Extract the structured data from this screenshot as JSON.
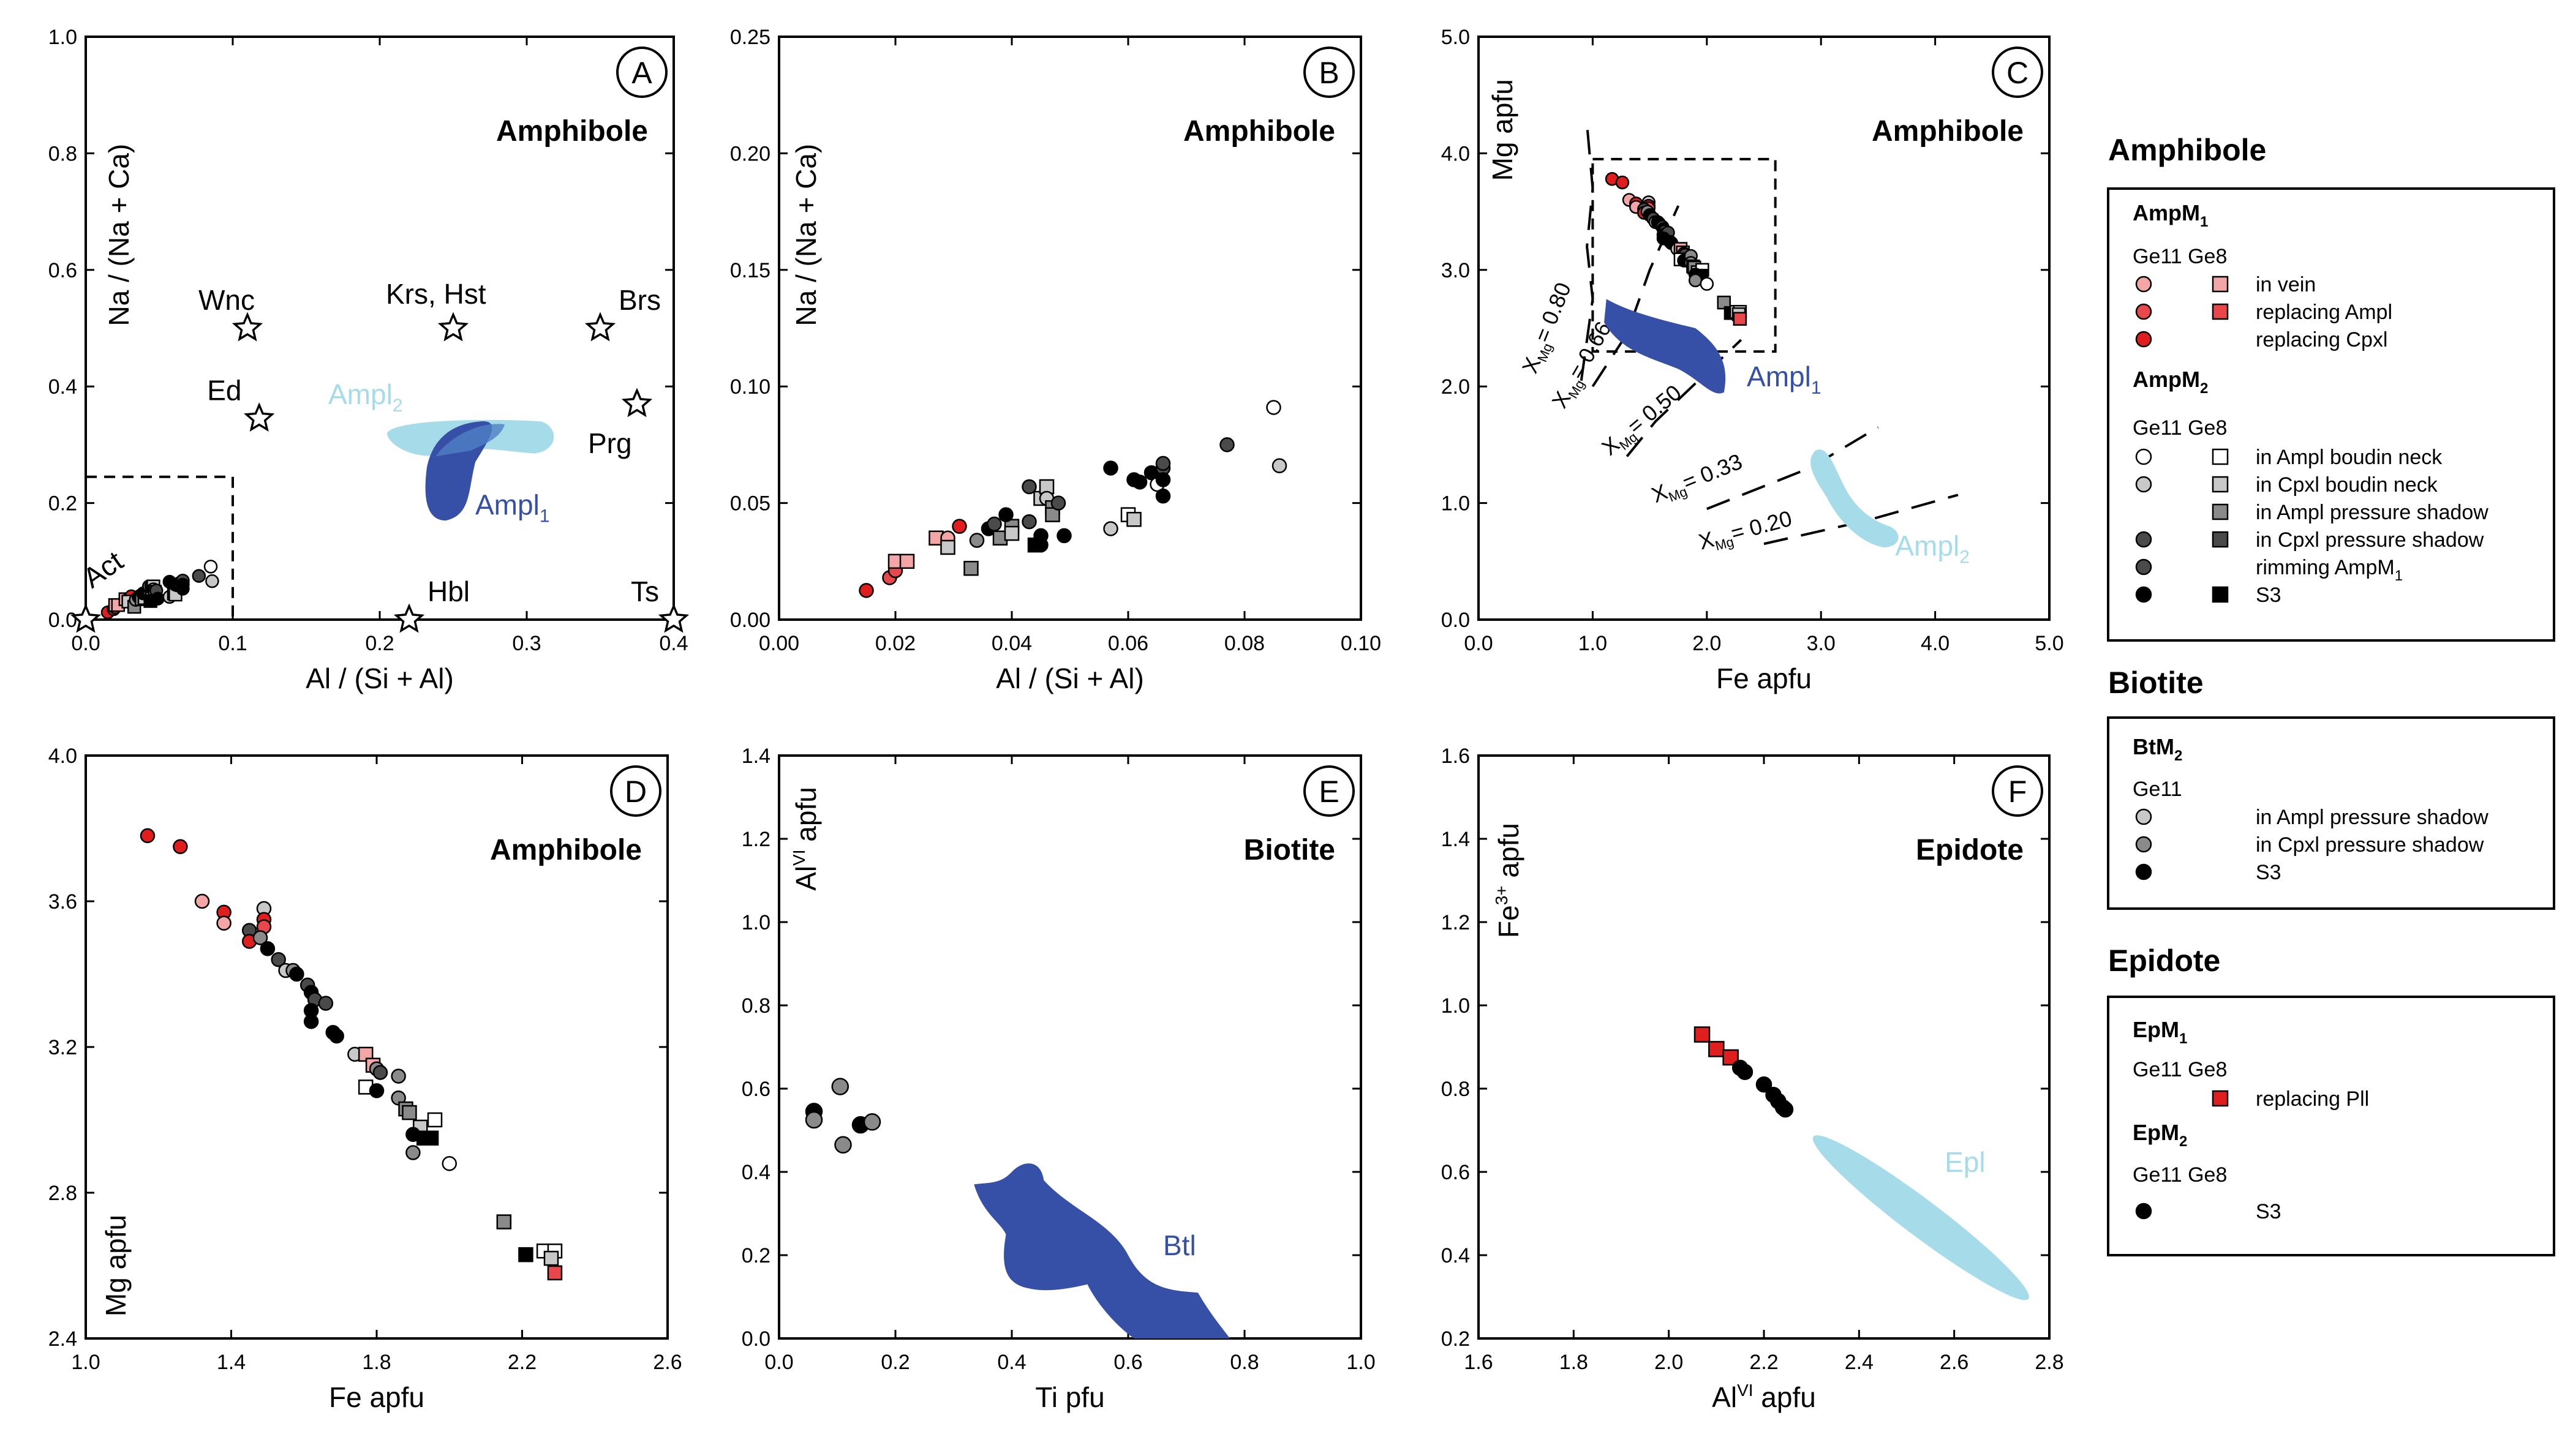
{
  "colors": {
    "light_red": "#f4a6a6",
    "red": "#e8484c",
    "dark_red": "#e01e1e",
    "white": "#ffffff",
    "light_grey": "#c8c8c8",
    "grey": "#8a8a8a",
    "dark_grey": "#4a4a4a",
    "black": "#000000",
    "dark_blue": "#3550a6",
    "light_blue": "#a6dcea"
  },
  "chart_data": [
    {
      "id": "A",
      "type": "scatter",
      "panel_label": "A",
      "title": "Amphibole",
      "xlabel": "Al / (Si + Al)",
      "ylabel": "Na / (Na + Ca)",
      "xlim": [
        0,
        0.4
      ],
      "ylim": [
        0,
        1.0
      ],
      "xticks": [
        "0.0",
        "0.1",
        "0.2",
        "0.3",
        "0.4"
      ],
      "yticks": [
        "0.0",
        "0.2",
        "0.4",
        "0.6",
        "0.8",
        "1.0"
      ],
      "end_members": [
        {
          "label": "Wnc",
          "x": 0.11,
          "y": 0.5
        },
        {
          "label": "Krs, Hst",
          "x": 0.25,
          "y": 0.5
        },
        {
          "label": "Brs",
          "x": 0.35,
          "y": 0.5
        },
        {
          "label": "Ed",
          "x": 0.118,
          "y": 0.345
        },
        {
          "label": "Prg",
          "x": 0.375,
          "y": 0.37
        },
        {
          "label": "Act",
          "x": 0.0,
          "y": 0.0
        },
        {
          "label": "Hbl",
          "x": 0.22,
          "y": 0.0
        },
        {
          "label": "Ts",
          "x": 0.4,
          "y": 0.0
        }
      ],
      "field_labels": [
        {
          "text": "Ampl",
          "sub": "2"
        },
        {
          "text": "Ampl",
          "sub": "1"
        }
      ],
      "zoom_box": {
        "x": [
          0,
          0.1
        ],
        "y": [
          0,
          0.245
        ]
      }
    },
    {
      "id": "B",
      "type": "scatter",
      "panel_label": "B",
      "title": "Amphibole",
      "xlabel": "Al / (Si + Al)",
      "ylabel": "Na / (Na + Ca)",
      "xlim": [
        0,
        0.1
      ],
      "ylim": [
        0,
        0.25
      ],
      "xticks": [
        "0.00",
        "0.02",
        "0.04",
        "0.06",
        "0.08",
        "0.10"
      ],
      "yticks": [
        "0.00",
        "0.05",
        "0.10",
        "0.15",
        "0.20",
        "0.25"
      ],
      "points": [
        {
          "x": 0.015,
          "y": 0.0125,
          "c": "dark_red",
          "s": "o"
        },
        {
          "x": 0.019,
          "y": 0.018,
          "c": "red",
          "s": "o"
        },
        {
          "x": 0.02,
          "y": 0.021,
          "c": "red",
          "s": "o"
        },
        {
          "x": 0.02,
          "y": 0.025,
          "c": "light_red",
          "s": "s"
        },
        {
          "x": 0.022,
          "y": 0.025,
          "c": "light_red",
          "s": "s"
        },
        {
          "x": 0.027,
          "y": 0.035,
          "c": "light_red",
          "s": "s"
        },
        {
          "x": 0.029,
          "y": 0.035,
          "c": "light_red",
          "s": "o"
        },
        {
          "x": 0.031,
          "y": 0.04,
          "c": "dark_red",
          "s": "o"
        },
        {
          "x": 0.029,
          "y": 0.031,
          "c": "light_grey",
          "s": "s"
        },
        {
          "x": 0.033,
          "y": 0.022,
          "c": "grey",
          "s": "s"
        },
        {
          "x": 0.034,
          "y": 0.034,
          "c": "grey",
          "s": "o"
        },
        {
          "x": 0.036,
          "y": 0.039,
          "c": "black",
          "s": "o"
        },
        {
          "x": 0.037,
          "y": 0.041,
          "c": "dark_grey",
          "s": "o"
        },
        {
          "x": 0.038,
          "y": 0.035,
          "c": "grey",
          "s": "s"
        },
        {
          "x": 0.04,
          "y": 0.04,
          "c": "grey",
          "s": "s"
        },
        {
          "x": 0.04,
          "y": 0.037,
          "c": "light_grey",
          "s": "s"
        },
        {
          "x": 0.039,
          "y": 0.045,
          "c": "black",
          "s": "o"
        },
        {
          "x": 0.043,
          "y": 0.042,
          "c": "dark_grey",
          "s": "o"
        },
        {
          "x": 0.043,
          "y": 0.057,
          "c": "dark_grey",
          "s": "o"
        },
        {
          "x": 0.045,
          "y": 0.036,
          "c": "black",
          "s": "o"
        },
        {
          "x": 0.045,
          "y": 0.032,
          "c": "black",
          "s": "o"
        },
        {
          "x": 0.045,
          "y": 0.052,
          "c": "light_grey",
          "s": "s"
        },
        {
          "x": 0.046,
          "y": 0.057,
          "c": "light_grey",
          "s": "s"
        },
        {
          "x": 0.046,
          "y": 0.052,
          "c": "light_grey",
          "s": "o"
        },
        {
          "x": 0.047,
          "y": 0.048,
          "c": "grey",
          "s": "s"
        },
        {
          "x": 0.047,
          "y": 0.045,
          "c": "grey",
          "s": "s"
        },
        {
          "x": 0.048,
          "y": 0.05,
          "c": "dark_grey",
          "s": "o"
        },
        {
          "x": 0.049,
          "y": 0.036,
          "c": "black",
          "s": "o"
        },
        {
          "x": 0.044,
          "y": 0.032,
          "c": "black",
          "s": "s"
        },
        {
          "x": 0.057,
          "y": 0.039,
          "c": "light_grey",
          "s": "o"
        },
        {
          "x": 0.057,
          "y": 0.065,
          "c": "black",
          "s": "o"
        },
        {
          "x": 0.06,
          "y": 0.045,
          "c": "white",
          "s": "s"
        },
        {
          "x": 0.061,
          "y": 0.043,
          "c": "light_grey",
          "s": "s"
        },
        {
          "x": 0.061,
          "y": 0.06,
          "c": "black",
          "s": "o"
        },
        {
          "x": 0.062,
          "y": 0.059,
          "c": "black",
          "s": "o"
        },
        {
          "x": 0.064,
          "y": 0.063,
          "c": "black",
          "s": "o"
        },
        {
          "x": 0.065,
          "y": 0.058,
          "c": "white",
          "s": "o"
        },
        {
          "x": 0.066,
          "y": 0.065,
          "c": "dark_grey",
          "s": "o"
        },
        {
          "x": 0.066,
          "y": 0.067,
          "c": "dark_grey",
          "s": "o"
        },
        {
          "x": 0.066,
          "y": 0.06,
          "c": "black",
          "s": "o"
        },
        {
          "x": 0.066,
          "y": 0.053,
          "c": "black",
          "s": "o"
        },
        {
          "x": 0.077,
          "y": 0.075,
          "c": "dark_grey",
          "s": "o"
        },
        {
          "x": 0.085,
          "y": 0.091,
          "c": "white",
          "s": "o"
        },
        {
          "x": 0.086,
          "y": 0.066,
          "c": "light_grey",
          "s": "o"
        }
      ]
    },
    {
      "id": "C",
      "type": "scatter",
      "panel_label": "C",
      "title": "Amphibole",
      "xlabel": "Fe apfu",
      "ylabel": "Mg apfu",
      "xlim": [
        0,
        5
      ],
      "ylim": [
        0,
        5
      ],
      "xticks": [
        "0.0",
        "1.0",
        "2.0",
        "3.0",
        "4.0",
        "5.0"
      ],
      "yticks": [
        "0.0",
        "1.0",
        "2.0",
        "3.0",
        "4.0",
        "5.0"
      ],
      "isolines": [
        {
          "label": "= 0.80",
          "xmg": "X",
          "sub": "Mg"
        },
        {
          "label": "= 0.66",
          "xmg": "X",
          "sub": "Mg"
        },
        {
          "label": "= 0.50",
          "xmg": "X",
          "sub": "Mg"
        },
        {
          "label": "= 0.33",
          "xmg": "X",
          "sub": "Mg"
        },
        {
          "label": "= 0.20",
          "xmg": "X",
          "sub": "Mg"
        }
      ],
      "field_labels": [
        {
          "text": "Ampl",
          "sub": "1"
        },
        {
          "text": "Ampl",
          "sub": "2"
        }
      ],
      "zoom_box": {
        "x": [
          1.0,
          2.6
        ],
        "y": [
          2.3,
          3.95
        ]
      }
    },
    {
      "id": "D",
      "type": "scatter",
      "panel_label": "D",
      "title": "Amphibole",
      "xlabel": "Fe apfu",
      "ylabel": "Mg apfu",
      "xlim": [
        1.0,
        2.6
      ],
      "ylim": [
        2.4,
        4.0
      ],
      "xticks": [
        "1.0",
        "1.4",
        "1.8",
        "2.2",
        "2.6"
      ],
      "yticks": [
        "2.4",
        "2.8",
        "3.2",
        "3.6",
        "4.0"
      ],
      "points": [
        {
          "x": 1.17,
          "y": 3.78,
          "c": "dark_red",
          "s": "o"
        },
        {
          "x": 1.26,
          "y": 3.75,
          "c": "dark_red",
          "s": "o"
        },
        {
          "x": 1.32,
          "y": 3.6,
          "c": "light_red",
          "s": "o"
        },
        {
          "x": 1.38,
          "y": 3.57,
          "c": "dark_red",
          "s": "o"
        },
        {
          "x": 1.38,
          "y": 3.54,
          "c": "light_red",
          "s": "o"
        },
        {
          "x": 1.49,
          "y": 3.58,
          "c": "light_grey",
          "s": "o"
        },
        {
          "x": 1.49,
          "y": 3.55,
          "c": "dark_red",
          "s": "o"
        },
        {
          "x": 1.49,
          "y": 3.53,
          "c": "red",
          "s": "o"
        },
        {
          "x": 1.45,
          "y": 3.52,
          "c": "dark_grey",
          "s": "o"
        },
        {
          "x": 1.45,
          "y": 3.49,
          "c": "dark_red",
          "s": "o"
        },
        {
          "x": 1.48,
          "y": 3.5,
          "c": "grey",
          "s": "o"
        },
        {
          "x": 1.5,
          "y": 3.47,
          "c": "black",
          "s": "o"
        },
        {
          "x": 1.53,
          "y": 3.44,
          "c": "dark_grey",
          "s": "o"
        },
        {
          "x": 1.55,
          "y": 3.41,
          "c": "light_grey",
          "s": "o"
        },
        {
          "x": 1.57,
          "y": 3.41,
          "c": "grey",
          "s": "o"
        },
        {
          "x": 1.58,
          "y": 3.4,
          "c": "black",
          "s": "o"
        },
        {
          "x": 1.61,
          "y": 3.37,
          "c": "dark_grey",
          "s": "o"
        },
        {
          "x": 1.62,
          "y": 3.35,
          "c": "black",
          "s": "o"
        },
        {
          "x": 1.63,
          "y": 3.33,
          "c": "dark_grey",
          "s": "o"
        },
        {
          "x": 1.62,
          "y": 3.3,
          "c": "black",
          "s": "o"
        },
        {
          "x": 1.66,
          "y": 3.32,
          "c": "dark_grey",
          "s": "o"
        },
        {
          "x": 1.62,
          "y": 3.27,
          "c": "black",
          "s": "o"
        },
        {
          "x": 1.68,
          "y": 3.24,
          "c": "black",
          "s": "o"
        },
        {
          "x": 1.69,
          "y": 3.23,
          "c": "black",
          "s": "o"
        },
        {
          "x": 1.74,
          "y": 3.18,
          "c": "light_grey",
          "s": "o"
        },
        {
          "x": 1.77,
          "y": 3.18,
          "c": "light_red",
          "s": "s"
        },
        {
          "x": 1.79,
          "y": 3.15,
          "c": "light_red",
          "s": "s"
        },
        {
          "x": 1.8,
          "y": 3.14,
          "c": "grey",
          "s": "o"
        },
        {
          "x": 1.81,
          "y": 3.13,
          "c": "dark_grey",
          "s": "o"
        },
        {
          "x": 1.77,
          "y": 3.09,
          "c": "white",
          "s": "s"
        },
        {
          "x": 1.8,
          "y": 3.08,
          "c": "black",
          "s": "o"
        },
        {
          "x": 1.86,
          "y": 3.12,
          "c": "grey",
          "s": "o"
        },
        {
          "x": 1.86,
          "y": 3.06,
          "c": "grey",
          "s": "o"
        },
        {
          "x": 1.88,
          "y": 3.03,
          "c": "grey",
          "s": "s"
        },
        {
          "x": 1.89,
          "y": 3.02,
          "c": "grey",
          "s": "s"
        },
        {
          "x": 1.92,
          "y": 2.98,
          "c": "light_grey",
          "s": "s"
        },
        {
          "x": 1.96,
          "y": 3.0,
          "c": "white",
          "s": "s"
        },
        {
          "x": 1.9,
          "y": 2.96,
          "c": "black",
          "s": "o"
        },
        {
          "x": 1.93,
          "y": 2.95,
          "c": "black",
          "s": "s"
        },
        {
          "x": 1.95,
          "y": 2.95,
          "c": "black",
          "s": "s"
        },
        {
          "x": 1.9,
          "y": 2.91,
          "c": "grey",
          "s": "o"
        },
        {
          "x": 2.0,
          "y": 2.88,
          "c": "white",
          "s": "o"
        },
        {
          "x": 2.15,
          "y": 2.72,
          "c": "grey",
          "s": "s"
        },
        {
          "x": 2.21,
          "y": 2.63,
          "c": "black",
          "s": "s"
        },
        {
          "x": 2.26,
          "y": 2.64,
          "c": "white",
          "s": "s"
        },
        {
          "x": 2.29,
          "y": 2.64,
          "c": "white",
          "s": "s"
        },
        {
          "x": 2.28,
          "y": 2.62,
          "c": "light_grey",
          "s": "s"
        },
        {
          "x": 2.29,
          "y": 2.58,
          "c": "red",
          "s": "s"
        }
      ]
    },
    {
      "id": "E",
      "type": "scatter",
      "panel_label": "E",
      "title": "Biotite",
      "xlabel": "Ti pfu",
      "ylabel": "Al",
      "ylabel_sup": "VI",
      "ylabel_rest": " apfu",
      "xlim": [
        0,
        1.0
      ],
      "ylim": [
        0,
        1.4
      ],
      "xticks": [
        "0.0",
        "0.2",
        "0.4",
        "0.6",
        "0.8",
        "1.0"
      ],
      "yticks": [
        "0.0",
        "0.2",
        "0.4",
        "0.6",
        "0.8",
        "1.0",
        "1.2",
        "1.4"
      ],
      "field_labels": [
        {
          "text": "Btl",
          "sub": ""
        }
      ],
      "points": [
        {
          "x": 0.06,
          "y": 0.545,
          "c": "black",
          "s": "o"
        },
        {
          "x": 0.06,
          "y": 0.525,
          "c": "grey",
          "s": "o"
        },
        {
          "x": 0.105,
          "y": 0.605,
          "c": "grey",
          "s": "o"
        },
        {
          "x": 0.11,
          "y": 0.465,
          "c": "grey",
          "s": "o"
        },
        {
          "x": 0.14,
          "y": 0.513,
          "c": "black",
          "s": "o"
        },
        {
          "x": 0.16,
          "y": 0.52,
          "c": "grey",
          "s": "o"
        }
      ]
    },
    {
      "id": "F",
      "type": "scatter",
      "panel_label": "F",
      "title": "Epidote",
      "xlabel": "Al",
      "xlabel_sup": "VI",
      "xlabel_rest": " apfu",
      "ylabel": "Fe",
      "ylabel_sup": "3+",
      "ylabel_rest": " apfu",
      "xlim": [
        1.6,
        2.8
      ],
      "ylim": [
        0.2,
        1.6
      ],
      "xticks": [
        "1.6",
        "1.8",
        "2.0",
        "2.2",
        "2.4",
        "2.6",
        "2.8"
      ],
      "yticks": [
        "0.2",
        "0.4",
        "0.6",
        "0.8",
        "1.0",
        "1.2",
        "1.4",
        "1.6"
      ],
      "field_labels": [
        {
          "text": "Epl",
          "sub": ""
        }
      ],
      "points": [
        {
          "x": 2.07,
          "y": 0.93,
          "c": "dark_red",
          "s": "s"
        },
        {
          "x": 2.1,
          "y": 0.895,
          "c": "dark_red",
          "s": "s"
        },
        {
          "x": 2.13,
          "y": 0.875,
          "c": "dark_red",
          "s": "s"
        },
        {
          "x": 2.15,
          "y": 0.85,
          "c": "black",
          "s": "o"
        },
        {
          "x": 2.16,
          "y": 0.84,
          "c": "black",
          "s": "o"
        },
        {
          "x": 2.2,
          "y": 0.81,
          "c": "black",
          "s": "o"
        },
        {
          "x": 2.22,
          "y": 0.785,
          "c": "black",
          "s": "o"
        },
        {
          "x": 2.23,
          "y": 0.77,
          "c": "black",
          "s": "o"
        },
        {
          "x": 2.24,
          "y": 0.755,
          "c": "black",
          "s": "o"
        },
        {
          "x": 2.245,
          "y": 0.75,
          "c": "black",
          "s": "o"
        }
      ]
    }
  ],
  "legend": {
    "amphibole": {
      "heading": "Amphibole",
      "group1": {
        "title": "AmpM",
        "title_sub": "1",
        "cols": "Ge11  Ge8",
        "rows": [
          {
            "label": "in vein",
            "circle": "light_red",
            "square": "light_red"
          },
          {
            "label": "replacing Ampl",
            "circle": "red",
            "square": "red"
          },
          {
            "label": "replacing Cpxl",
            "circle": "dark_red",
            "square": ""
          }
        ]
      },
      "group2": {
        "title": "AmpM",
        "title_sub": "2",
        "cols": "Ge11  Ge8",
        "rows": [
          {
            "label": "in Ampl boudin neck",
            "circle": "white",
            "square": "white"
          },
          {
            "label": "in Cpxl boudin neck",
            "circle": "light_grey",
            "square": "light_grey"
          },
          {
            "label": "in Ampl pressure shadow",
            "circle": "",
            "square": "grey"
          },
          {
            "label": "in Cpxl pressure shadow",
            "circle": "dark_grey",
            "square": "dark_grey"
          },
          {
            "label": "rimming AmpM",
            "label_sub": "1",
            "circle": "dark_grey",
            "square": ""
          },
          {
            "label": "S3",
            "circle": "black",
            "square": "black"
          }
        ]
      }
    },
    "biotite": {
      "heading": "Biotite",
      "group": {
        "title": "BtM",
        "title_sub": "2",
        "cols": "Ge11",
        "rows": [
          {
            "label": "in Ampl pressure shadow",
            "circle": "light_grey"
          },
          {
            "label": "in Cpxl pressure shadow",
            "circle": "grey"
          },
          {
            "label": "S3",
            "circle": "black"
          }
        ]
      }
    },
    "epidote": {
      "heading": "Epidote",
      "group1": {
        "title": "EpM",
        "title_sub": "1",
        "cols": "Ge11  Ge8",
        "rows": [
          {
            "label": "replacing Pll",
            "square": "dark_red"
          }
        ]
      },
      "group2": {
        "title": "EpM",
        "title_sub": "2",
        "cols": "Ge11  Ge8",
        "rows": [
          {
            "label": "S3",
            "circle": "black"
          }
        ]
      }
    }
  }
}
